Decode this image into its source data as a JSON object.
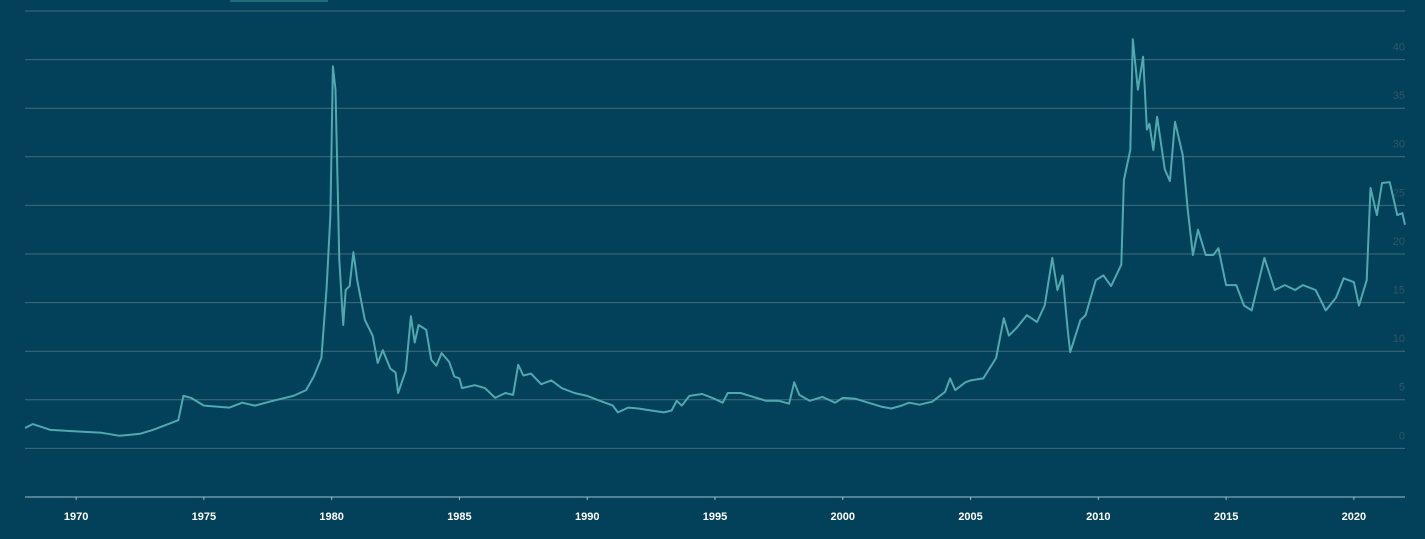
{
  "chart_data": {
    "type": "line",
    "color": "#4fa9b1",
    "grid": true,
    "xlim": [
      1968,
      2022
    ],
    "xticks": [
      1970,
      1975,
      1980,
      1985,
      1990,
      1995,
      2000,
      2005,
      2010,
      2015,
      2020
    ],
    "ylim": [
      -5,
      45
    ],
    "yticks": [
      0,
      5,
      10,
      15,
      20,
      25,
      30,
      35,
      40
    ],
    "x": [
      1968.0,
      1968.3,
      1969,
      1970,
      1971,
      1971.7,
      1972.5,
      1973,
      1973.5,
      1974.0,
      1974.2,
      1974.5,
      1975,
      1976,
      1976.5,
      1977,
      1977.7,
      1978.5,
      1979.0,
      1979.3,
      1979.6,
      1979.8,
      1979.95,
      1980.05,
      1980.15,
      1980.3,
      1980.45,
      1980.55,
      1980.7,
      1980.85,
      1981.0,
      1981.3,
      1981.6,
      1981.8,
      1982.0,
      1982.3,
      1982.5,
      1982.6,
      1982.9,
      1983.1,
      1983.25,
      1983.4,
      1983.7,
      1983.9,
      1984.1,
      1984.3,
      1984.6,
      1984.8,
      1985.0,
      1985.1,
      1985.6,
      1986.0,
      1986.4,
      1986.8,
      1987.1,
      1987.3,
      1987.5,
      1987.8,
      1988.2,
      1988.6,
      1989.0,
      1989.5,
      1990.0,
      1990.5,
      1991.0,
      1991.2,
      1991.6,
      1992.0,
      1992.5,
      1993.0,
      1993.3,
      1993.5,
      1993.7,
      1994.0,
      1994.5,
      1994.9,
      1995.3,
      1995.5,
      1996.0,
      1996.5,
      1997.0,
      1997.5,
      1997.9,
      1998.1,
      1998.3,
      1998.7,
      1999.2,
      1999.7,
      2000.0,
      2000.5,
      2001.0,
      2001.5,
      2001.9,
      2002.3,
      2002.6,
      2003.0,
      2003.5,
      2004.0,
      2004.2,
      2004.4,
      2004.8,
      2005.0,
      2005.5,
      2006.0,
      2006.3,
      2006.5,
      2006.8,
      2007.2,
      2007.6,
      2007.9,
      2008.2,
      2008.4,
      2008.6,
      2008.8,
      2008.9,
      2009.3,
      2009.5,
      2009.9,
      2010.2,
      2010.5,
      2010.9,
      2011.0,
      2011.25,
      2011.35,
      2011.55,
      2011.75,
      2011.9,
      2012.0,
      2012.15,
      2012.3,
      2012.6,
      2012.8,
      2013.0,
      2013.3,
      2013.5,
      2013.7,
      2013.9,
      2014.2,
      2014.5,
      2014.7,
      2015.0,
      2015.4,
      2015.7,
      2016.0,
      2016.5,
      2016.9,
      2017.3,
      2017.7,
      2018.0,
      2018.5,
      2018.9,
      2019.3,
      2019.6,
      2020.0,
      2020.2,
      2020.5,
      2020.65,
      2020.9,
      2021.1,
      2021.4,
      2021.7,
      2021.9,
      2022.0
    ],
    "values": [
      2.1,
      2.5,
      1.9,
      1.75,
      1.6,
      1.3,
      1.5,
      1.9,
      2.4,
      2.9,
      5.4,
      5.2,
      4.4,
      4.2,
      4.7,
      4.4,
      4.9,
      5.4,
      6.0,
      7.4,
      9.3,
      16.5,
      24,
      39.3,
      36.9,
      19.4,
      12.7,
      16.3,
      16.7,
      20.2,
      17.3,
      13.2,
      11.6,
      8.8,
      10.1,
      8.2,
      7.8,
      5.7,
      8.0,
      13.6,
      10.9,
      12.7,
      12.2,
      9.1,
      8.5,
      9.8,
      8.9,
      7.4,
      7.2,
      6.2,
      6.5,
      6.2,
      5.2,
      5.7,
      5.5,
      8.6,
      7.5,
      7.7,
      6.6,
      7.0,
      6.2,
      5.7,
      5.4,
      4.9,
      4.4,
      3.7,
      4.2,
      4.1,
      3.9,
      3.7,
      3.9,
      4.9,
      4.4,
      5.4,
      5.6,
      5.2,
      4.7,
      5.7,
      5.7,
      5.3,
      4.9,
      4.9,
      4.6,
      6.8,
      5.5,
      4.9,
      5.3,
      4.7,
      5.2,
      5.1,
      4.7,
      4.3,
      4.1,
      4.4,
      4.7,
      4.5,
      4.8,
      5.8,
      7.2,
      6.0,
      6.8,
      7.0,
      7.2,
      9.3,
      13.4,
      11.6,
      12.4,
      13.7,
      13.0,
      14.7,
      19.6,
      16.3,
      17.8,
      12.2,
      9.9,
      13.2,
      13.7,
      17.3,
      17.8,
      16.7,
      18.9,
      27.6,
      30.7,
      42.1,
      36.9,
      40.3,
      32.8,
      33.4,
      30.7,
      34.1,
      28.7,
      27.5,
      33.6,
      30.2,
      24.5,
      19.9,
      22.5,
      19.9,
      19.9,
      20.6,
      16.8,
      16.8,
      14.7,
      14.2,
      19.6,
      16.3,
      16.8,
      16.3,
      16.8,
      16.3,
      14.2,
      15.5,
      17.5,
      17.1,
      14.7,
      17.3,
      26.8,
      24.0,
      27.3,
      27.4,
      24.0,
      24.2,
      23.0
    ]
  }
}
